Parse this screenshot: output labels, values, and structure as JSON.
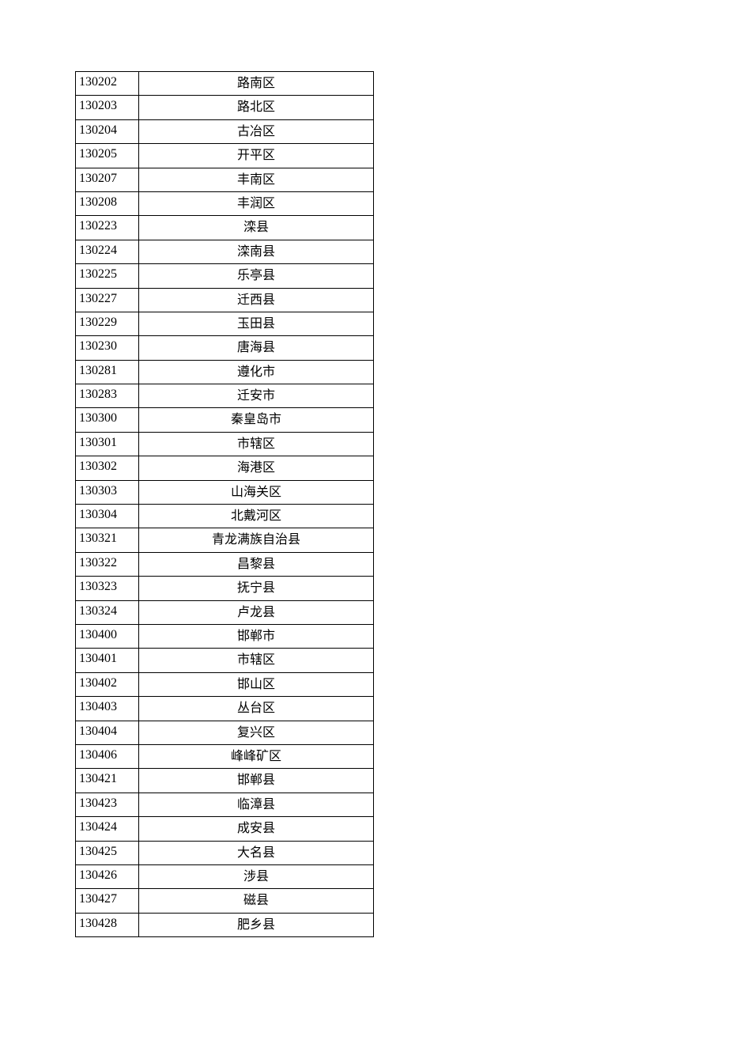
{
  "table": {
    "rows": [
      {
        "code": "130202",
        "name": "路南区"
      },
      {
        "code": "130203",
        "name": "路北区"
      },
      {
        "code": "130204",
        "name": "古冶区"
      },
      {
        "code": "130205",
        "name": "开平区"
      },
      {
        "code": "130207",
        "name": "丰南区"
      },
      {
        "code": "130208",
        "name": "丰润区"
      },
      {
        "code": "130223",
        "name": "滦县"
      },
      {
        "code": "130224",
        "name": "滦南县"
      },
      {
        "code": "130225",
        "name": "乐亭县"
      },
      {
        "code": "130227",
        "name": "迁西县"
      },
      {
        "code": "130229",
        "name": "玉田县"
      },
      {
        "code": "130230",
        "name": "唐海县"
      },
      {
        "code": "130281",
        "name": "遵化市"
      },
      {
        "code": "130283",
        "name": "迁安市"
      },
      {
        "code": "130300",
        "name": "秦皇岛市"
      },
      {
        "code": "130301",
        "name": "市辖区"
      },
      {
        "code": "130302",
        "name": "海港区"
      },
      {
        "code": "130303",
        "name": "山海关区"
      },
      {
        "code": "130304",
        "name": "北戴河区"
      },
      {
        "code": "130321",
        "name": "青龙满族自治县"
      },
      {
        "code": "130322",
        "name": "昌黎县"
      },
      {
        "code": "130323",
        "name": "抚宁县"
      },
      {
        "code": "130324",
        "name": "卢龙县"
      },
      {
        "code": "130400",
        "name": "邯郸市"
      },
      {
        "code": "130401",
        "name": "市辖区"
      },
      {
        "code": "130402",
        "name": "邯山区"
      },
      {
        "code": "130403",
        "name": "丛台区"
      },
      {
        "code": "130404",
        "name": "复兴区"
      },
      {
        "code": "130406",
        "name": "峰峰矿区"
      },
      {
        "code": "130421",
        "name": "邯郸县"
      },
      {
        "code": "130423",
        "name": "临漳县"
      },
      {
        "code": "130424",
        "name": "成安县"
      },
      {
        "code": "130425",
        "name": "大名县"
      },
      {
        "code": "130426",
        "name": "涉县"
      },
      {
        "code": "130427",
        "name": "磁县"
      },
      {
        "code": "130428",
        "name": "肥乡县"
      }
    ]
  }
}
